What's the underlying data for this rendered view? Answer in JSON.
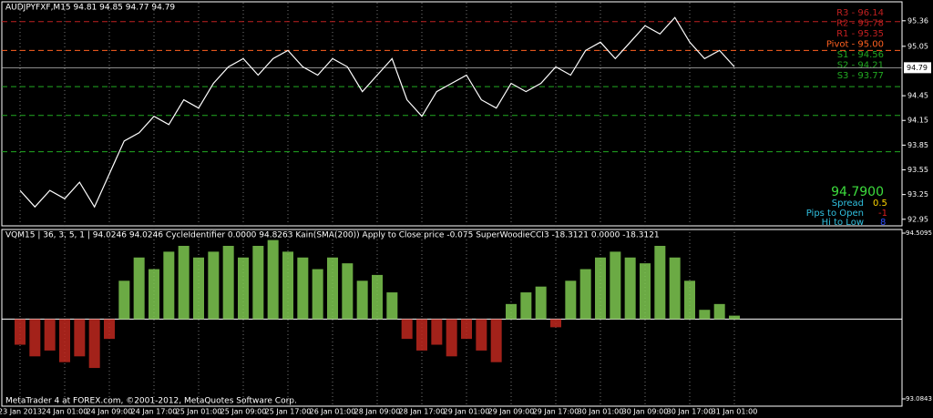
{
  "chart_data": [
    {
      "type": "line",
      "title": "AUDJPYFXF,M15  94.81 94.85 94.77 94.79",
      "color": "#ffffff",
      "categories": [
        "23 Jan 2013",
        null,
        null,
        "24 Jan 01:00",
        null,
        null,
        "24 Jan 09:00",
        null,
        null,
        "24 Jan 17:00",
        null,
        null,
        "25 Jan 01:00",
        null,
        null,
        "25 Jan 09:00",
        null,
        null,
        "25 Jan 17:00",
        null,
        null,
        "26 Jan 01:00",
        null,
        null,
        "28 Jan 09:00",
        null,
        null,
        "28 Jan 17:00",
        null,
        null,
        "29 Jan 01:00",
        null,
        null,
        "29 Jan 09:00",
        null,
        null,
        "29 Jan 17:00",
        null,
        null,
        "30 Jan 01:00",
        null,
        null,
        "30 Jan 09:00",
        null,
        null,
        "30 Jan 17:00",
        null,
        null,
        "31 Jan 01:00"
      ],
      "values": [
        93.3,
        93.1,
        93.3,
        93.2,
        93.4,
        93.1,
        93.5,
        93.9,
        94.0,
        94.2,
        94.1,
        94.4,
        94.3,
        94.6,
        94.8,
        94.9,
        94.7,
        94.9,
        95.0,
        94.8,
        94.7,
        94.9,
        94.8,
        94.5,
        94.7,
        94.9,
        94.4,
        94.2,
        94.5,
        94.6,
        94.7,
        94.4,
        94.3,
        94.6,
        94.5,
        94.6,
        94.8,
        94.7,
        95.0,
        95.1,
        94.9,
        95.1,
        95.3,
        95.2,
        95.4,
        95.1,
        94.9,
        95.0,
        94.8
      ],
      "ylim": [
        92.87,
        95.59
      ],
      "yticks": [
        95.36,
        95.05,
        94.45,
        94.15,
        93.85,
        93.55,
        93.25,
        92.95
      ],
      "current_price": {
        "value": 94.79,
        "label": "94.79"
      },
      "pivots": [
        {
          "label": "R3 - 96.14",
          "value": 96.14
        },
        {
          "label": "R2 - 95.78",
          "value": 95.78
        },
        {
          "label": "R1 - 95.35",
          "value": 95.35
        },
        {
          "label": "Pivot - 95.00",
          "value": 95.0
        },
        {
          "label": "S1 - 94.56",
          "value": 94.56
        },
        {
          "label": "S2 - 94.21",
          "value": 94.21
        },
        {
          "label": "S3 - 93.77",
          "value": 93.77
        }
      ],
      "info": {
        "price": "94.7900",
        "spread_label": "Spread",
        "spread": "0.5",
        "pips_label": "Pips to Open",
        "pips": "-1",
        "hilo_label": "Hi to Low",
        "hilo": "8"
      }
    },
    {
      "type": "bar",
      "title": "VQM15 | 36, 3, 5, 1 | 94.0246 94.0246  CycleIdentifier 0.0000 94.8263  Kain(SMA(200)) Apply to Close price -0.075  SuperWoodieCCI3 -18.3121 0.0000 -18.3121",
      "color_up": "#7ec850",
      "color_down": "#c0281e",
      "baseline": 93.77,
      "values": [
        93.55,
        93.45,
        93.5,
        93.4,
        93.45,
        93.35,
        93.6,
        94.1,
        94.3,
        94.2,
        94.35,
        94.4,
        94.3,
        94.35,
        94.4,
        94.3,
        94.4,
        94.45,
        94.35,
        94.3,
        94.2,
        94.3,
        94.25,
        94.1,
        94.15,
        94.0,
        93.6,
        93.5,
        93.55,
        93.45,
        93.6,
        93.5,
        93.4,
        93.9,
        94.0,
        94.05,
        93.7,
        94.1,
        94.2,
        94.3,
        94.35,
        94.3,
        94.25,
        94.4,
        94.3,
        94.1,
        93.85,
        93.9,
        93.8
      ],
      "ylim": [
        93.0843,
        94.5095
      ],
      "yticks": [
        94.5095,
        93.0843
      ]
    }
  ],
  "footer": "MetaTrader 4 at FOREX.com, ©2001-2012, MetaQuotes Software Corp."
}
